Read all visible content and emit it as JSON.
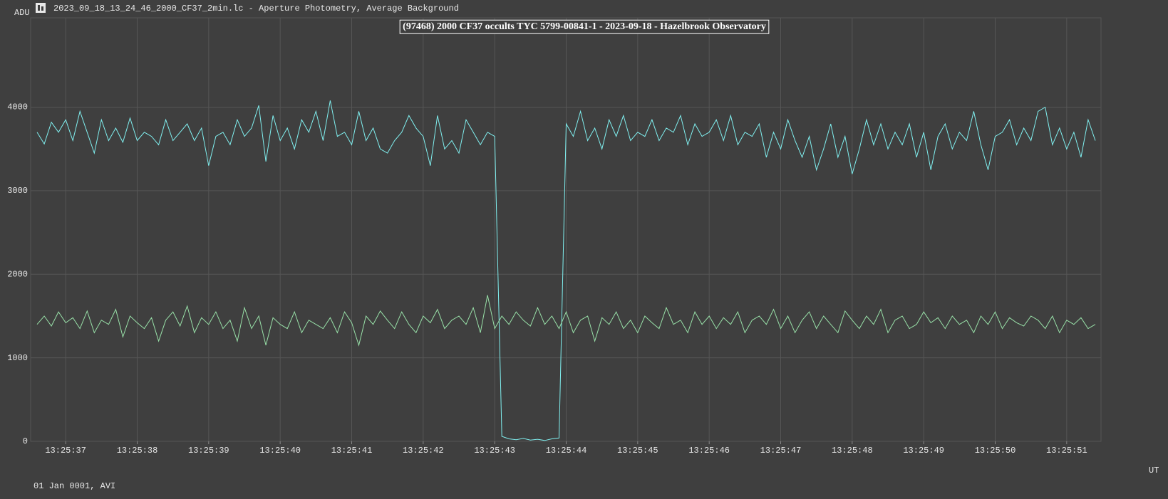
{
  "window_title": "2023_09_18_13_24_46_2000_CF37_2min.lc - Aperture Photometry, Average Background",
  "footer": "01 Jan 0001, AVI",
  "chart_data": {
    "type": "line",
    "title": "(97468) 2000 CF37 occults TYC 5799-00841-1 - 2023-09-18 - Hazelbrook Observatory",
    "y_label": "ADU",
    "x_label": "UT",
    "x": [
      36.6,
      36.7,
      36.8,
      36.9,
      37,
      37.1,
      37.2,
      37.3,
      37.4,
      37.5,
      37.6,
      37.7,
      37.8,
      37.9,
      38,
      38.1,
      38.2,
      38.3,
      38.4,
      38.5,
      38.6,
      38.7,
      38.8,
      38.9,
      39,
      39.1,
      39.2,
      39.3,
      39.4,
      39.5,
      39.6,
      39.7,
      39.8,
      39.9,
      40,
      40.1,
      40.2,
      40.3,
      40.4,
      40.5,
      40.6,
      40.7,
      40.8,
      40.9,
      41,
      41.1,
      41.2,
      41.3,
      41.4,
      41.5,
      41.6,
      41.7,
      41.8,
      41.9,
      42,
      42.1,
      42.2,
      42.3,
      42.4,
      42.5,
      42.6,
      42.7,
      42.8,
      42.9,
      43,
      43.1,
      43.2,
      43.3,
      43.4,
      43.5,
      43.6,
      43.7,
      43.8,
      43.9,
      44,
      44.1,
      44.2,
      44.3,
      44.4,
      44.5,
      44.6,
      44.7,
      44.8,
      44.9,
      45,
      45.1,
      45.2,
      45.3,
      45.4,
      45.5,
      45.6,
      45.7,
      45.8,
      45.9,
      46,
      46.1,
      46.2,
      46.3,
      46.4,
      46.5,
      46.6,
      46.7,
      46.8,
      46.9,
      47,
      47.1,
      47.2,
      47.3,
      47.4,
      47.5,
      47.6,
      47.7,
      47.8,
      47.9,
      48,
      48.1,
      48.2,
      48.3,
      48.4,
      48.5,
      48.6,
      48.7,
      48.8,
      48.9,
      49,
      49.1,
      49.2,
      49.3,
      49.4,
      49.5,
      49.6,
      49.7,
      49.8,
      49.9,
      50,
      50.1,
      50.2,
      50.3,
      50.4,
      50.5,
      50.6,
      50.7,
      50.8,
      50.9,
      51,
      51.1,
      51.2,
      51.3,
      51.4
    ],
    "series": [
      {
        "color": "#80f0f0",
        "values": [
          3700,
          3560,
          3820,
          3700,
          3850,
          3600,
          3950,
          3700,
          3450,
          3850,
          3600,
          3750,
          3580,
          3870,
          3600,
          3700,
          3650,
          3550,
          3850,
          3600,
          3700,
          3800,
          3600,
          3750,
          3300,
          3650,
          3700,
          3550,
          3850,
          3650,
          3750,
          4020,
          3350,
          3900,
          3600,
          3750,
          3500,
          3850,
          3700,
          3950,
          3600,
          4080,
          3650,
          3700,
          3550,
          3950,
          3600,
          3750,
          3500,
          3450,
          3600,
          3700,
          3900,
          3750,
          3650,
          3300,
          3900,
          3500,
          3600,
          3450,
          3850,
          3700,
          3550,
          3700,
          3650,
          60,
          30,
          20,
          35,
          15,
          25,
          10,
          30,
          40,
          3800,
          3650,
          3950,
          3600,
          3750,
          3500,
          3850,
          3650,
          3900,
          3600,
          3700,
          3650,
          3850,
          3600,
          3750,
          3700,
          3900,
          3550,
          3800,
          3650,
          3700,
          3850,
          3600,
          3900,
          3550,
          3700,
          3650,
          3800,
          3400,
          3700,
          3500,
          3850,
          3600,
          3400,
          3650,
          3250,
          3500,
          3800,
          3400,
          3650,
          3200,
          3500,
          3850,
          3550,
          3800,
          3500,
          3700,
          3550,
          3800,
          3400,
          3700,
          3250,
          3650,
          3800,
          3500,
          3700,
          3600,
          3950,
          3550,
          3250,
          3650,
          3700,
          3850,
          3550,
          3750,
          3600,
          3950,
          4000,
          3550,
          3750,
          3500,
          3700,
          3400,
          3850,
          3600
        ]
      },
      {
        "color": "#98e0a8",
        "values": [
          1400,
          1500,
          1380,
          1550,
          1420,
          1480,
          1350,
          1560,
          1300,
          1450,
          1400,
          1580,
          1250,
          1500,
          1420,
          1350,
          1480,
          1200,
          1450,
          1550,
          1380,
          1620,
          1300,
          1480,
          1400,
          1550,
          1350,
          1450,
          1200,
          1600,
          1350,
          1500,
          1150,
          1480,
          1400,
          1350,
          1550,
          1300,
          1450,
          1400,
          1350,
          1480,
          1300,
          1550,
          1420,
          1150,
          1500,
          1400,
          1560,
          1450,
          1350,
          1550,
          1400,
          1300,
          1500,
          1420,
          1580,
          1350,
          1450,
          1500,
          1400,
          1600,
          1300,
          1750,
          1350,
          1500,
          1400,
          1550,
          1450,
          1380,
          1600,
          1400,
          1500,
          1350,
          1550,
          1300,
          1450,
          1500,
          1200,
          1480,
          1400,
          1550,
          1350,
          1450,
          1300,
          1500,
          1420,
          1350,
          1600,
          1400,
          1450,
          1300,
          1550,
          1400,
          1500,
          1350,
          1480,
          1400,
          1550,
          1300,
          1450,
          1500,
          1400,
          1580,
          1350,
          1500,
          1300,
          1450,
          1550,
          1350,
          1500,
          1400,
          1300,
          1560,
          1450,
          1350,
          1500,
          1400,
          1580,
          1300,
          1450,
          1500,
          1350,
          1400,
          1550,
          1420,
          1480,
          1350,
          1500,
          1400,
          1450,
          1300,
          1500,
          1400,
          1550,
          1350,
          1480,
          1420,
          1380,
          1500,
          1450,
          1350,
          1500,
          1300,
          1450,
          1400,
          1480,
          1350,
          1400
        ]
      }
    ],
    "xlim": [
      36.51,
      51.48
    ],
    "ylim": [
      0,
      5070
    ],
    "xticks": [
      {
        "value": 37,
        "label": "13:25:37"
      },
      {
        "value": 38,
        "label": "13:25:38"
      },
      {
        "value": 39,
        "label": "13:25:39"
      },
      {
        "value": 40,
        "label": "13:25:40"
      },
      {
        "value": 41,
        "label": "13:25:41"
      },
      {
        "value": 42,
        "label": "13:25:42"
      },
      {
        "value": 43,
        "label": "13:25:43"
      },
      {
        "value": 44,
        "label": "13:25:44"
      },
      {
        "value": 45,
        "label": "13:25:45"
      },
      {
        "value": 46,
        "label": "13:25:46"
      },
      {
        "value": 47,
        "label": "13:25:47"
      },
      {
        "value": 48,
        "label": "13:25:48"
      },
      {
        "value": 49,
        "label": "13:25:49"
      },
      {
        "value": 50,
        "label": "13:25:50"
      },
      {
        "value": 51,
        "label": "13:25:51"
      }
    ],
    "yticks": [
      0,
      1000,
      2000,
      3000,
      4000
    ],
    "grid": true
  }
}
